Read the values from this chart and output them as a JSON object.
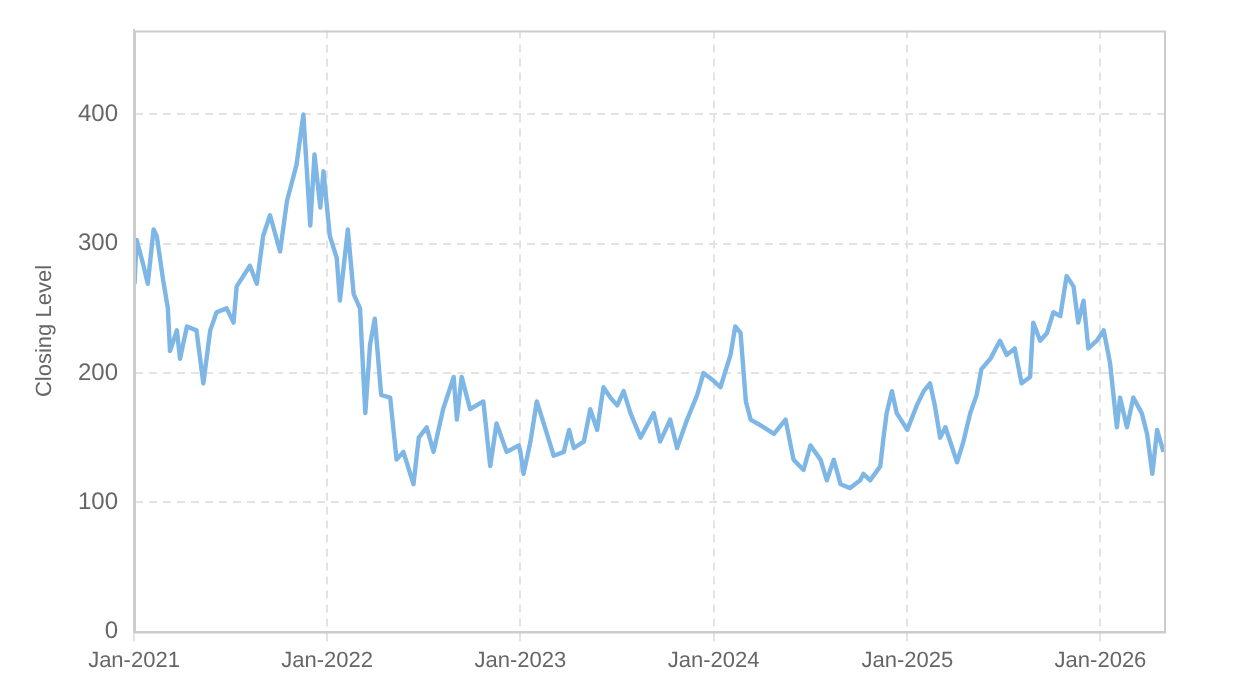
{
  "chart_data": {
    "type": "line",
    "ylabel": "Closing Level",
    "color": "#7eb6e6",
    "grid": true,
    "legend": false,
    "marker": "none",
    "line_style": "solid",
    "xlim": [
      "2021-01-01",
      "2026-05-01"
    ],
    "xticks": [
      {
        "value": "2021-01",
        "label": "Jan-2021"
      },
      {
        "value": "2022-01",
        "label": "Jan-2022"
      },
      {
        "value": "2023-01",
        "label": "Jan-2023"
      },
      {
        "value": "2024-01",
        "label": "Jan-2024"
      },
      {
        "value": "2025-01",
        "label": "Jan-2025"
      },
      {
        "value": "2026-01",
        "label": "Jan-2026"
      }
    ],
    "ylim": [
      0,
      465
    ],
    "yticks": [
      0,
      100,
      200,
      300,
      400
    ],
    "x": [
      "2021-01-02",
      "2021-01-06",
      "2021-01-19",
      "2021-01-27",
      "2021-02-07",
      "2021-02-13",
      "2021-02-25",
      "2021-03-06",
      "2021-03-10",
      "2021-03-23",
      "2021-03-29",
      "2021-04-11",
      "2021-04-29",
      "2021-05-12",
      "2021-05-25",
      "2021-06-06",
      "2021-06-25",
      "2021-07-08",
      "2021-07-14",
      "2021-08-08",
      "2021-08-21",
      "2021-09-02",
      "2021-09-15",
      "2021-10-04",
      "2021-10-17",
      "2021-11-04",
      "2021-11-17",
      "2021-11-30",
      "2021-12-08",
      "2021-12-19",
      "2021-12-25",
      "2022-01-06",
      "2022-01-19",
      "2022-01-25",
      "2022-02-09",
      "2022-02-20",
      "2022-03-04",
      "2022-03-14",
      "2022-03-23",
      "2022-04-01",
      "2022-04-13",
      "2022-04-30",
      "2022-05-12",
      "2022-05-25",
      "2022-06-13",
      "2022-06-23",
      "2022-07-08",
      "2022-07-21",
      "2022-08-08",
      "2022-08-28",
      "2022-09-03",
      "2022-09-12",
      "2022-09-28",
      "2022-10-23",
      "2022-11-05",
      "2022-11-17",
      "2022-12-06",
      "2022-12-29",
      "2023-01-01",
      "2023-01-07",
      "2023-01-20",
      "2023-02-01",
      "2023-02-14",
      "2023-03-05",
      "2023-03-24",
      "2023-04-03",
      "2023-04-12",
      "2023-05-01",
      "2023-05-13",
      "2023-05-26",
      "2023-06-07",
      "2023-06-20",
      "2023-07-03",
      "2023-07-15",
      "2023-07-28",
      "2023-08-16",
      "2023-09-10",
      "2023-09-22",
      "2023-10-11",
      "2023-10-24",
      "2023-11-12",
      "2023-12-01",
      "2023-12-13",
      "2024-01-01",
      "2024-01-14",
      "2024-02-02",
      "2024-02-11",
      "2024-02-21",
      "2024-03-02",
      "2024-03-11",
      "2024-04-05",
      "2024-04-24",
      "2024-05-16",
      "2024-05-31",
      "2024-06-19",
      "2024-07-02",
      "2024-07-21",
      "2024-08-02",
      "2024-08-15",
      "2024-08-28",
      "2024-09-15",
      "2024-10-04",
      "2024-10-10",
      "2024-10-23",
      "2024-11-11",
      "2024-11-17",
      "2024-11-23",
      "2024-12-03",
      "2024-12-12",
      "2025-01-01",
      "2025-01-19",
      "2025-02-01",
      "2025-02-13",
      "2025-02-22",
      "2025-03-04",
      "2025-03-14",
      "2025-03-23",
      "2025-04-05",
      "2025-04-17",
      "2025-04-30",
      "2025-05-12",
      "2025-05-21",
      "2025-06-07",
      "2025-06-25",
      "2025-07-08",
      "2025-07-23",
      "2025-08-05",
      "2025-08-21",
      "2025-08-27",
      "2025-09-09",
      "2025-09-22",
      "2025-10-04",
      "2025-10-17",
      "2025-10-29",
      "2025-11-11",
      "2025-11-20",
      "2025-11-30",
      "2025-12-09",
      "2025-12-25",
      "2026-01-07",
      "2026-01-19",
      "2026-02-01",
      "2026-02-07",
      "2026-02-20",
      "2026-03-04",
      "2026-03-20",
      "2026-03-30",
      "2026-04-09",
      "2026-04-18",
      "2026-04-30"
    ],
    "values": [
      269,
      303,
      283,
      269,
      311,
      306,
      272,
      250,
      217,
      233,
      211,
      236,
      233,
      192,
      233,
      247,
      250,
      239,
      267,
      283,
      269,
      306,
      322,
      294,
      333,
      361,
      400,
      314,
      369,
      328,
      356,
      306,
      289,
      256,
      311,
      261,
      250,
      169,
      222,
      242,
      183,
      181,
      133,
      139,
      114,
      150,
      158,
      139,
      172,
      197,
      164,
      197,
      172,
      178,
      128,
      161,
      139,
      144,
      139,
      122,
      147,
      178,
      161,
      136,
      139,
      156,
      142,
      147,
      172,
      156,
      189,
      181,
      175,
      186,
      169,
      150,
      169,
      147,
      164,
      142,
      164,
      183,
      200,
      194,
      189,
      214,
      236,
      231,
      178,
      164,
      158,
      153,
      164,
      133,
      125,
      144,
      133,
      117,
      133,
      114,
      111,
      117,
      122,
      117,
      128,
      150,
      169,
      186,
      169,
      156,
      175,
      186,
      192,
      175,
      150,
      158,
      147,
      131,
      147,
      169,
      183,
      203,
      211,
      225,
      214,
      219,
      192,
      197,
      239,
      225,
      231,
      247,
      244,
      275,
      267,
      239,
      256,
      219,
      225,
      233,
      208,
      158,
      181,
      158,
      181,
      169,
      153,
      122,
      156,
      139
    ]
  }
}
